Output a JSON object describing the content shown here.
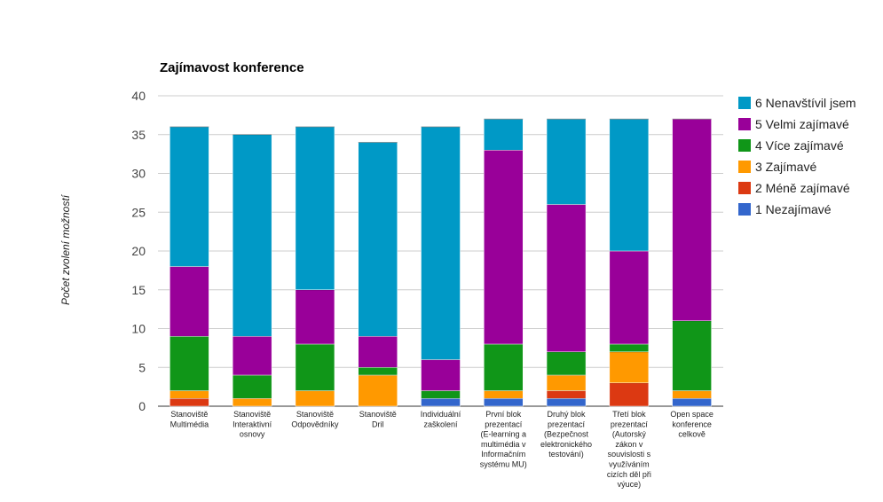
{
  "chart_data": {
    "type": "bar",
    "stacked": true,
    "title": "Zajímavost konference",
    "xlabel": "",
    "ylabel": "Počet zvolení možností",
    "ylim": [
      0,
      40
    ],
    "yticks": [
      0,
      5,
      10,
      15,
      20,
      25,
      30,
      35,
      40
    ],
    "grid": true,
    "legend_position": "right",
    "categories": [
      "Stanoviště Multimédia",
      "Stanoviště Interaktivní osnovy",
      "Stanoviště Odpovědníky",
      "Stanoviště Dril",
      "Individuální zaškolení",
      "První blok prezentací (E-learning a multimédia v Informačním systému MU)",
      "Druhý blok prezentací (Bezpečnost elektronického testování)",
      "Třetí blok prezentací (Autorský zákon v souvislosti s využíváním cizích děl při výuce)",
      "Open space konference celkově"
    ],
    "category_lines": [
      [
        "Stanoviště",
        "Multimédia"
      ],
      [
        "Stanoviště",
        "Interaktivní",
        "osnovy"
      ],
      [
        "Stanoviště",
        "Odpovědníky"
      ],
      [
        "Stanoviště",
        "Dril"
      ],
      [
        "Individuální",
        "zaškolení"
      ],
      [
        "První blok",
        "prezentací",
        "(E-learning a",
        "multimédia v",
        "Informačním",
        "systému MU)"
      ],
      [
        "Druhý blok",
        "prezentací",
        "(Bezpečnost",
        "elektronického",
        "testování)"
      ],
      [
        "Třetí blok",
        "prezentací",
        "(Autorský",
        "zákon v",
        "souvislosti s",
        "využíváním",
        "cizích děl při",
        "výuce)"
      ],
      [
        "Open space",
        "konference",
        "celkově"
      ]
    ],
    "series": [
      {
        "name": "1 Nezajímavé",
        "color": "#3366cc",
        "values": [
          0,
          0,
          0,
          0,
          1,
          1,
          1,
          0,
          1
        ]
      },
      {
        "name": "2 Méně zajímavé",
        "color": "#dc3912",
        "values": [
          1,
          0,
          0,
          0,
          0,
          0,
          1,
          3,
          0
        ]
      },
      {
        "name": "3 Zajímavé",
        "color": "#ff9900",
        "values": [
          1,
          1,
          2,
          4,
          0,
          1,
          2,
          4,
          1
        ]
      },
      {
        "name": "4 Více zajímavé",
        "color": "#109618",
        "values": [
          7,
          3,
          6,
          1,
          1,
          6,
          3,
          1,
          9
        ]
      },
      {
        "name": "5 Velmi zajímavé",
        "color": "#990099",
        "values": [
          9,
          5,
          7,
          4,
          4,
          25,
          19,
          12,
          26
        ]
      },
      {
        "name": "6 Nenavštívil jsem",
        "color": "#0099c6",
        "values": [
          18,
          26,
          21,
          25,
          30,
          4,
          11,
          17,
          0
        ]
      }
    ]
  }
}
